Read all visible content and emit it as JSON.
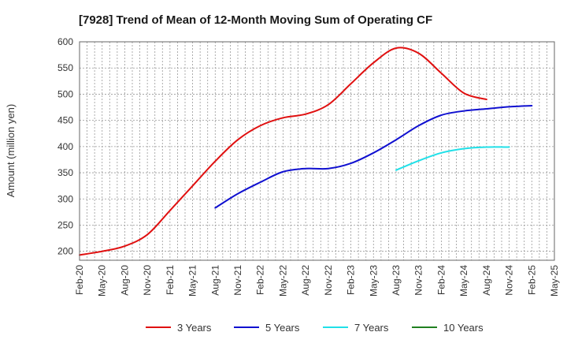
{
  "chart_data": {
    "type": "line",
    "title": "[7928]  Trend of Mean of 12-Month Moving Sum of Operating CF",
    "xlabel": "",
    "ylabel": "Amount (million yen)",
    "ylim": [
      183,
      600
    ],
    "yticks": [
      200,
      250,
      300,
      350,
      400,
      450,
      500,
      550,
      600
    ],
    "x_categories": [
      "Feb-20",
      "May-20",
      "Aug-20",
      "Nov-20",
      "Feb-21",
      "May-21",
      "Aug-21",
      "Nov-21",
      "Feb-22",
      "May-22",
      "Aug-22",
      "Nov-22",
      "Feb-23",
      "May-23",
      "Aug-23",
      "Nov-23",
      "Feb-24",
      "May-24",
      "Aug-24",
      "Nov-24",
      "Feb-25",
      "May-25"
    ],
    "grid": true,
    "legend_position": "bottom",
    "series": [
      {
        "name": "3 Years",
        "color": "#e01010",
        "start_index": 0,
        "values": [
          193,
          200,
          210,
          232,
          278,
          325,
          372,
          413,
          440,
          455,
          462,
          480,
          520,
          560,
          588,
          578,
          540,
          502,
          490
        ]
      },
      {
        "name": "5 Years",
        "color": "#1010d0",
        "start_index": 6,
        "values": [
          283,
          310,
          332,
          352,
          358,
          358,
          368,
          388,
          413,
          440,
          460,
          468,
          472,
          476,
          478
        ]
      },
      {
        "name": "7 Years",
        "color": "#20e0e8",
        "start_index": 14,
        "values": [
          355,
          373,
          388,
          396,
          399,
          399
        ]
      },
      {
        "name": "10 Years",
        "color": "#208020",
        "start_index": 0,
        "values": []
      }
    ]
  }
}
